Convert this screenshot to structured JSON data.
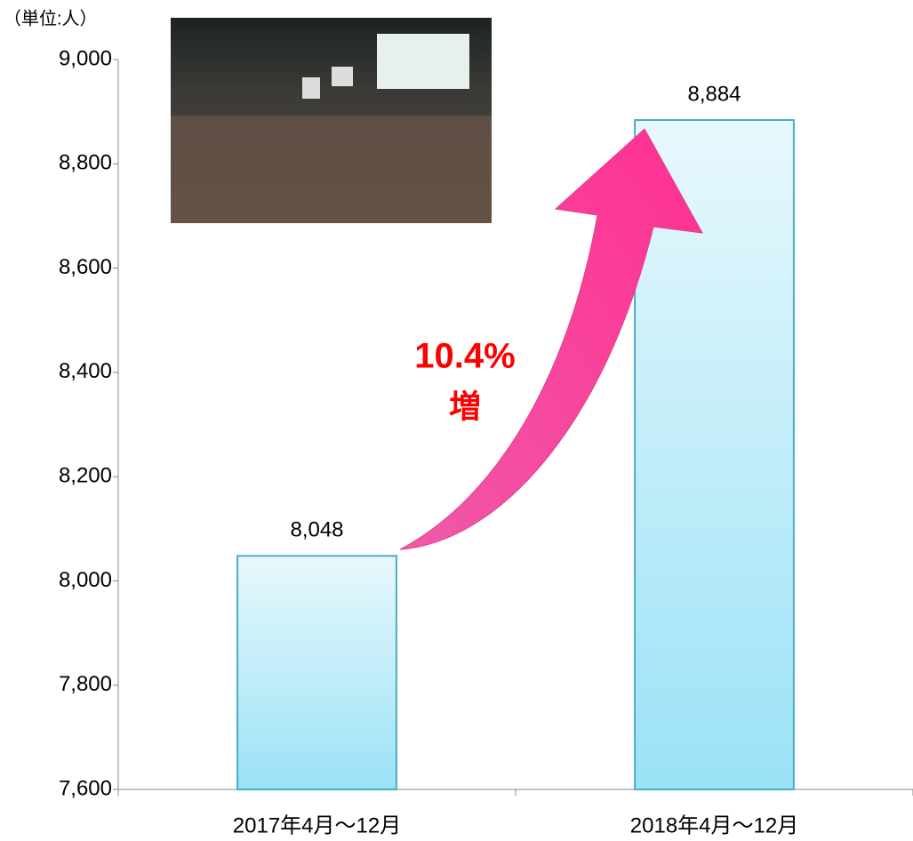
{
  "chart_data": {
    "type": "bar",
    "unit_label": "（単位:人）",
    "categories": [
      "2017年4月～12月",
      "2018年4月～12月"
    ],
    "values": [
      8048,
      8884
    ],
    "value_labels": [
      "8,048",
      "8,884"
    ],
    "color": "#4bacc6",
    "ylim": [
      7600,
      9000
    ],
    "yticks": [
      {
        "value": 7600,
        "label": "7,600"
      },
      {
        "value": 7800,
        "label": "7,800"
      },
      {
        "value": 8000,
        "label": "8,000"
      },
      {
        "value": 8200,
        "label": "8,200"
      },
      {
        "value": 8400,
        "label": "8,400"
      },
      {
        "value": 8600,
        "label": "8,600"
      },
      {
        "value": 8800,
        "label": "8,800"
      },
      {
        "value": 9000,
        "label": "9,000"
      }
    ],
    "grid": false,
    "annotations": [
      "10.4%",
      "増"
    ]
  }
}
